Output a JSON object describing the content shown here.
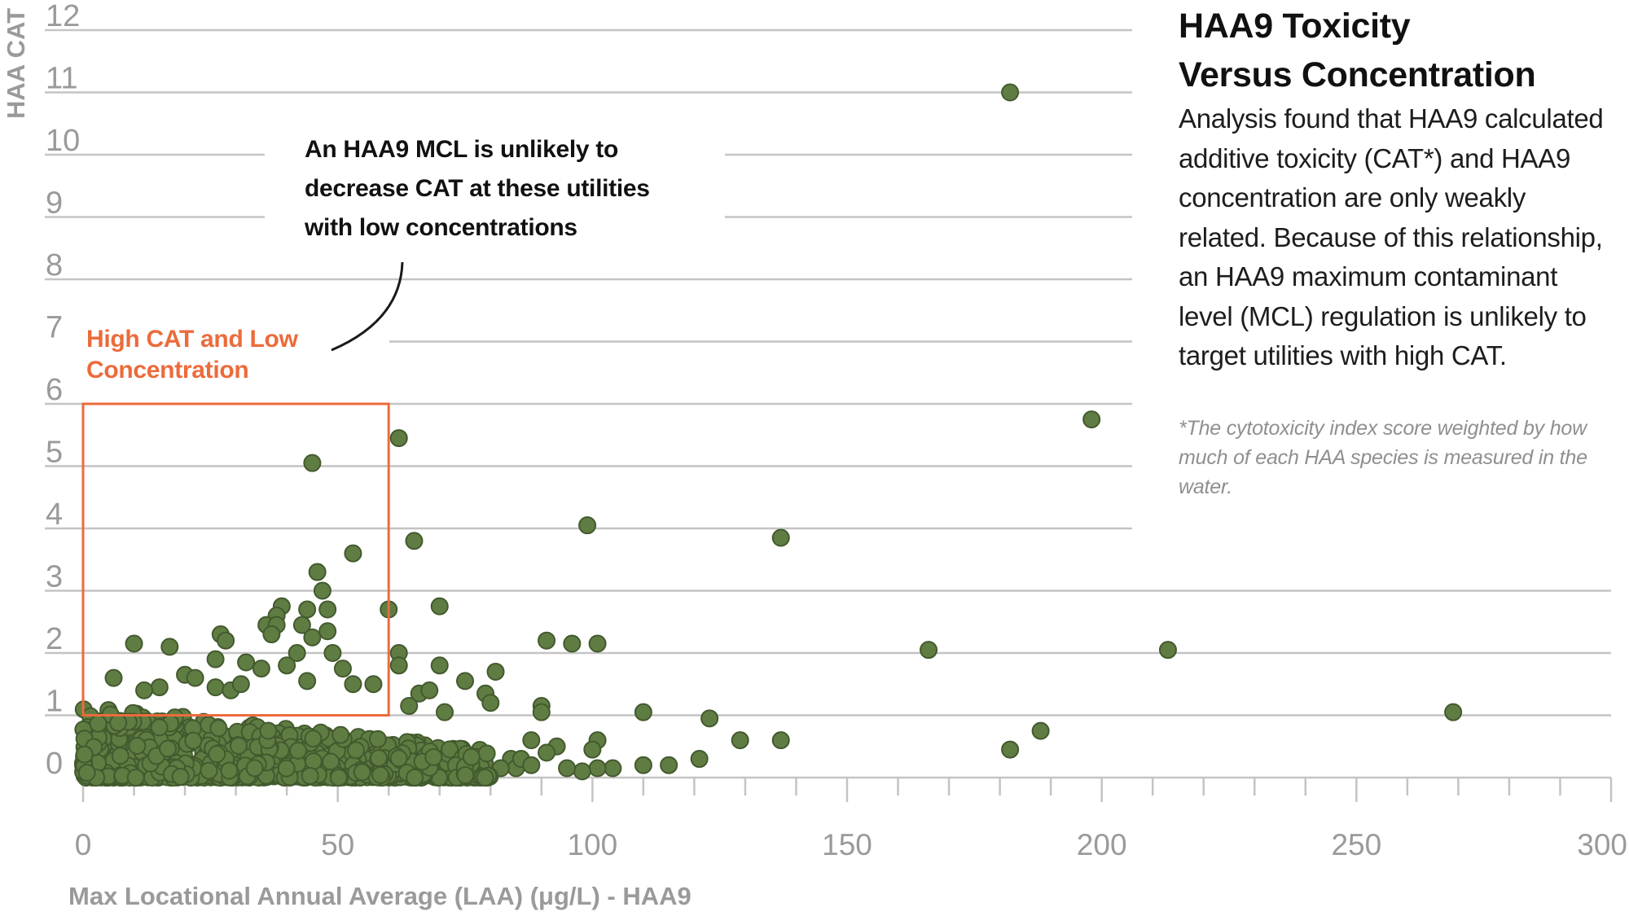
{
  "panel": {
    "title_line1": "HAA9 Toxicity",
    "title_line2": "Versus Concentration",
    "body": "Analysis found that HAA9 calculated additive toxicity (CAT*) and HAA9 concentration are only weakly related. Because of this relationship, an HAA9 maximum contaminant level (MCL) regulation is unlikely to target utilities with high CAT.",
    "note": "*The cytotoxicity index score weighted by how much of each HAA species is measured in the water."
  },
  "annotations": {
    "callout_line1": "An HAA9 MCL is unlikely to",
    "callout_line2": "decrease CAT at these utilities",
    "callout_line3": "with low concentrations",
    "highlight_line1": "High CAT and Low",
    "highlight_line2": "Concentration"
  },
  "colors": {
    "point": "#5f7d43",
    "point_stroke": "#43592e",
    "highlight": "#ec6b3b",
    "grid": "#c4c4c4",
    "tick_text": "#9a9a9a"
  },
  "chart_data": {
    "type": "scatter",
    "title": "",
    "xlabel": "Max Locational Annual Average (LAA) (μg/L) - HAA9",
    "ylabel": "HAA CAT",
    "xlim": [
      0,
      300
    ],
    "ylim": [
      0,
      12
    ],
    "x_ticks": [
      "0",
      "50",
      "100",
      "150",
      "200",
      "250",
      "300"
    ],
    "y_ticks": [
      "0",
      "1",
      "2",
      "3",
      "4",
      "5",
      "6",
      "7",
      "8",
      "9",
      "10",
      "11",
      "12"
    ],
    "grid": "horizontal",
    "highlight_region": {
      "x": [
        0,
        60
      ],
      "y": [
        1,
        6
      ]
    },
    "series": [
      {
        "points": [
          [
            182,
            11.0
          ],
          [
            198,
            5.75
          ],
          [
            45,
            5.05
          ],
          [
            62,
            5.45
          ],
          [
            99,
            4.05
          ],
          [
            137,
            3.85
          ],
          [
            65,
            3.8
          ],
          [
            53,
            3.6
          ],
          [
            46,
            3.3
          ],
          [
            47,
            3.0
          ],
          [
            70,
            2.75
          ],
          [
            39,
            2.75
          ],
          [
            38,
            2.6
          ],
          [
            44,
            2.7
          ],
          [
            60,
            2.7
          ],
          [
            48,
            2.7
          ],
          [
            36,
            2.45
          ],
          [
            38,
            2.45
          ],
          [
            43,
            2.45
          ],
          [
            27,
            2.3
          ],
          [
            37,
            2.3
          ],
          [
            45,
            2.25
          ],
          [
            48,
            2.35
          ],
          [
            28,
            2.2
          ],
          [
            91,
            2.2
          ],
          [
            96,
            2.15
          ],
          [
            101,
            2.15
          ],
          [
            10,
            2.15
          ],
          [
            17,
            2.1
          ],
          [
            166,
            2.05
          ],
          [
            213,
            2.05
          ],
          [
            42,
            2.0
          ],
          [
            49,
            2.0
          ],
          [
            62,
            2.0
          ],
          [
            26,
            1.9
          ],
          [
            32,
            1.85
          ],
          [
            35,
            1.75
          ],
          [
            40,
            1.8
          ],
          [
            51,
            1.75
          ],
          [
            70,
            1.8
          ],
          [
            81,
            1.7
          ],
          [
            62,
            1.8
          ],
          [
            6,
            1.6
          ],
          [
            20,
            1.65
          ],
          [
            22,
            1.6
          ],
          [
            15,
            1.45
          ],
          [
            12,
            1.4
          ],
          [
            26,
            1.45
          ],
          [
            29,
            1.4
          ],
          [
            31,
            1.5
          ],
          [
            44,
            1.55
          ],
          [
            53,
            1.5
          ],
          [
            57,
            1.5
          ],
          [
            75,
            1.55
          ],
          [
            66,
            1.35
          ],
          [
            68,
            1.4
          ],
          [
            79,
            1.35
          ],
          [
            80,
            1.2
          ],
          [
            64,
            1.15
          ],
          [
            71,
            1.05
          ],
          [
            90,
            1.15
          ],
          [
            90,
            1.05
          ],
          [
            110,
            1.05
          ],
          [
            123,
            0.95
          ],
          [
            269,
            1.05
          ],
          [
            188,
            0.75
          ],
          [
            182,
            0.45
          ],
          [
            129,
            0.6
          ],
          [
            137,
            0.6
          ],
          [
            101,
            0.6
          ],
          [
            100,
            0.45
          ],
          [
            121,
            0.3
          ],
          [
            115,
            0.2
          ],
          [
            110,
            0.2
          ],
          [
            104,
            0.15
          ],
          [
            101,
            0.15
          ],
          [
            98,
            0.1
          ],
          [
            95,
            0.15
          ],
          [
            93,
            0.5
          ],
          [
            88,
            0.6
          ],
          [
            91,
            0.4
          ],
          [
            84,
            0.3
          ],
          [
            85,
            0.15
          ],
          [
            86,
            0.3
          ],
          [
            82,
            0.15
          ],
          [
            88,
            0.2
          ]
        ]
      }
    ]
  }
}
